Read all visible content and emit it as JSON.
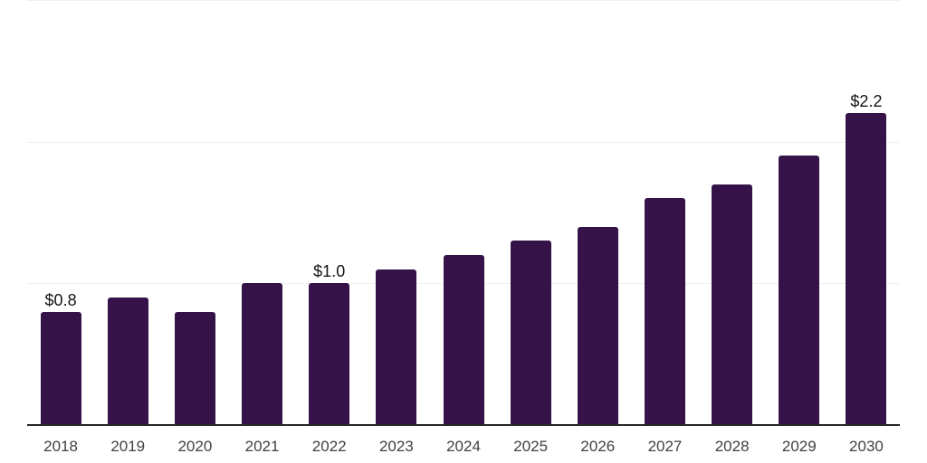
{
  "chart_data": {
    "type": "bar",
    "title": "",
    "xlabel": "",
    "ylabel": "",
    "categories": [
      "2018",
      "2019",
      "2020",
      "2021",
      "2022",
      "2023",
      "2024",
      "2025",
      "2026",
      "2027",
      "2028",
      "2029",
      "2030"
    ],
    "values": [
      0.8,
      0.9,
      0.8,
      1.0,
      1.0,
      1.1,
      1.2,
      1.3,
      1.4,
      1.6,
      1.7,
      1.9,
      2.2
    ],
    "data_labels": [
      "$0.8",
      "",
      "",
      "",
      "$1.0",
      "",
      "",
      "",
      "",
      "",
      "",
      "",
      "$2.2"
    ],
    "ylim": [
      0,
      3
    ],
    "y_gridlines": [
      1,
      2,
      3
    ],
    "grid": "horizontal",
    "legend": "none",
    "y_axis_tick_labels": [],
    "colors": {
      "bar": "#351349",
      "gridline": "#f0f0f0",
      "axis_line": "#262626",
      "x_tick_label": "#404040",
      "data_label": "#141414",
      "background": "#ffffff"
    }
  }
}
